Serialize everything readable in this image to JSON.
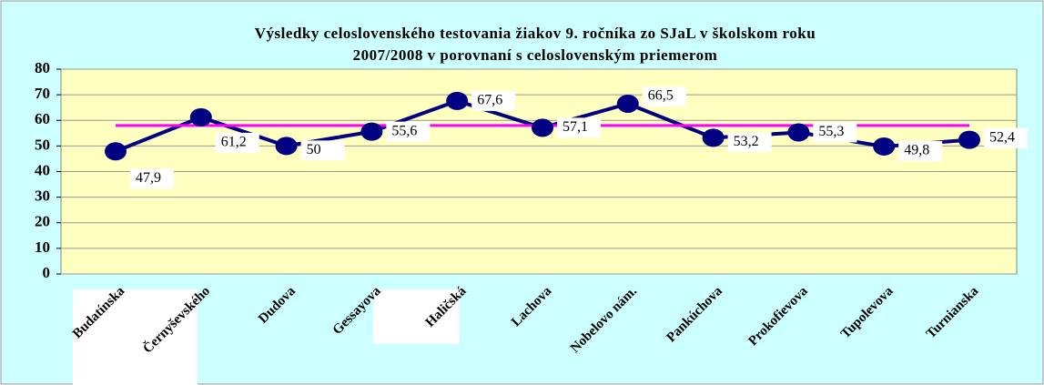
{
  "chart_data": {
    "type": "line",
    "title": [
      "Výsledky celoslovenského testovania žiakov 9. ročníka zo SJaL v školskom roku",
      "2007/2008 v porovnaní s celoslovenským priemerom"
    ],
    "categories": [
      "Budatínska",
      "Černyševského",
      "Dudova",
      "Gessayova",
      "Haličská",
      "Lachova",
      "Nobelovo nám.",
      "Pankúchova",
      "Prokofievova",
      "Tupolevova",
      "Turnianska"
    ],
    "series": [
      {
        "color": "#000080",
        "values": [
          47.9,
          61.2,
          50,
          55.6,
          67.6,
          57.1,
          66.5,
          53.2,
          55.3,
          49.8,
          52.4
        ],
        "value_labels": [
          "47,9",
          "61,2",
          "50",
          "55,6",
          "67,6",
          "57,1",
          "66,5",
          "53,2",
          "55,3",
          "49,8",
          "52,4"
        ]
      },
      {
        "color": "#ff00ff",
        "values": [
          58,
          58,
          58,
          58,
          58,
          58,
          58,
          58,
          58,
          58,
          58
        ]
      }
    ],
    "ylim": [
      0,
      80
    ],
    "yticks": [
      0,
      10,
      20,
      30,
      40,
      50,
      60,
      70,
      80
    ],
    "grid": true
  }
}
